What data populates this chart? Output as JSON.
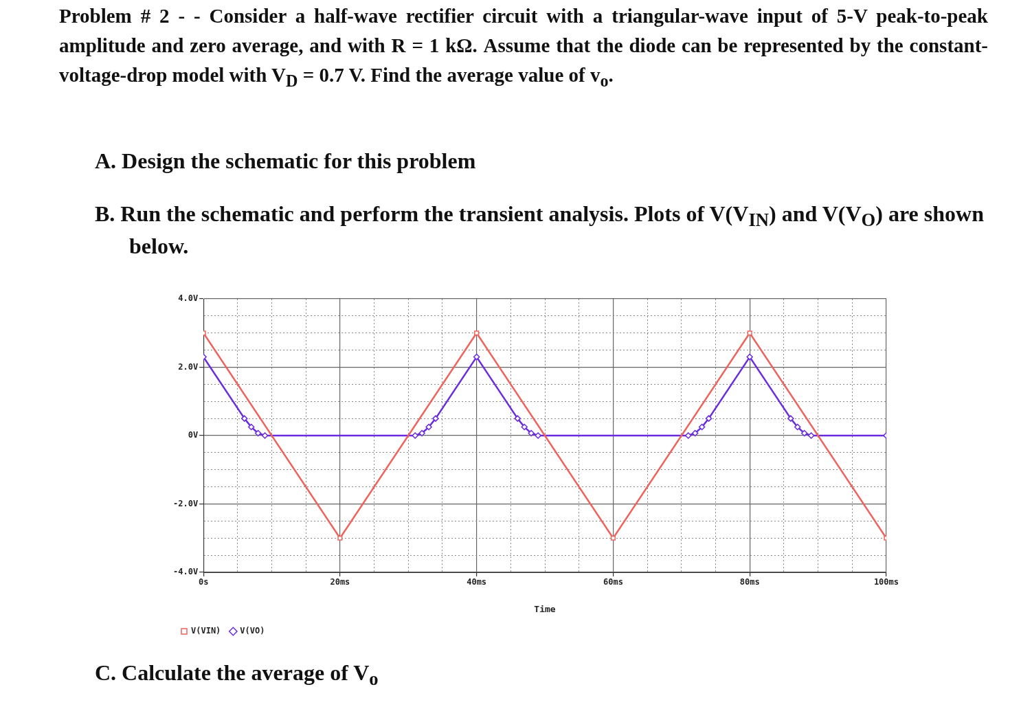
{
  "chart_data": {
    "type": "line",
    "title": "Problem # 2 - - Consider a half-wave rectifier circuit with a triangular-wave input of 5-V peak-to-peak amplitude and zero average, and with R = 1 kΩ. Assume that the diode can be represented by the constant-voltage-drop model with V$_{D}$ = 0.7 V. Find the average value of v$_{o}$.",
    "annotations": [
      "A. Design the schematic for this problem",
      "B. Run the schematic and perform the transient analysis. Plots of V(V$_{IN}$) and V(V$_{O}$) are shown below.",
      "C. Calculate the average of V$_{o}$"
    ],
    "xlabel": "Time",
    "series": [
      {
        "name": "V(VIN)",
        "color": "#f0625c",
        "marker": "square",
        "x": [
          0,
          20,
          40,
          60,
          80,
          100
        ],
        "values": [
          3,
          -3,
          3,
          -3,
          3,
          -3
        ]
      },
      {
        "name": "V(VO)",
        "color": "#6a2be0",
        "marker": "diamond",
        "x": [
          0,
          6,
          7,
          8,
          9,
          31,
          32,
          33,
          34,
          40,
          46,
          47,
          48,
          49,
          71,
          72,
          73,
          74,
          80,
          86,
          87,
          88,
          89,
          100
        ],
        "values": [
          2.3,
          0.5,
          0.25,
          0.07,
          0,
          0,
          0.07,
          0.25,
          0.5,
          2.3,
          0.5,
          0.25,
          0.07,
          0,
          0,
          0.07,
          0.25,
          0.5,
          2.3,
          0.5,
          0.25,
          0.07,
          0,
          0
        ]
      }
    ],
    "xlim": [
      0,
      100
    ],
    "xticks": [
      {
        "value": 0,
        "label": "0s"
      },
      {
        "value": 5,
        "label": null
      },
      {
        "value": 10,
        "label": null
      },
      {
        "value": 15,
        "label": null
      },
      {
        "value": 20,
        "label": "20ms"
      },
      {
        "value": 25,
        "label": null
      },
      {
        "value": 30,
        "label": null
      },
      {
        "value": 35,
        "label": null
      },
      {
        "value": 40,
        "label": "40ms"
      },
      {
        "value": 45,
        "label": null
      },
      {
        "value": 50,
        "label": null
      },
      {
        "value": 55,
        "label": null
      },
      {
        "value": 60,
        "label": "60ms"
      },
      {
        "value": 65,
        "label": null
      },
      {
        "value": 70,
        "label": null
      },
      {
        "value": 75,
        "label": null
      },
      {
        "value": 80,
        "label": "80ms"
      },
      {
        "value": 85,
        "label": null
      },
      {
        "value": 90,
        "label": null
      },
      {
        "value": 95,
        "label": null
      },
      {
        "value": 100,
        "label": "100ms"
      }
    ],
    "ylim": [
      -4,
      4
    ],
    "yticks": [
      {
        "value": -4,
        "label": "-4.0V"
      },
      {
        "value": -3.5,
        "label": null
      },
      {
        "value": -3,
        "label": null
      },
      {
        "value": -2.5,
        "label": null
      },
      {
        "value": -2,
        "label": "-2.0V"
      },
      {
        "value": -1.5,
        "label": null
      },
      {
        "value": -1,
        "label": null
      },
      {
        "value": -0.5,
        "label": null
      },
      {
        "value": 0,
        "label": "0V"
      },
      {
        "value": 0.5,
        "label": null
      },
      {
        "value": 1,
        "label": null
      },
      {
        "value": 1.5,
        "label": null
      },
      {
        "value": 2,
        "label": "2.0V"
      },
      {
        "value": 2.5,
        "label": null
      },
      {
        "value": 3,
        "label": null
      },
      {
        "value": 3.5,
        "label": null
      },
      {
        "value": 4,
        "label": "4.0V"
      }
    ],
    "grid": true,
    "legend": "bottom left",
    "line_style": "solid"
  }
}
